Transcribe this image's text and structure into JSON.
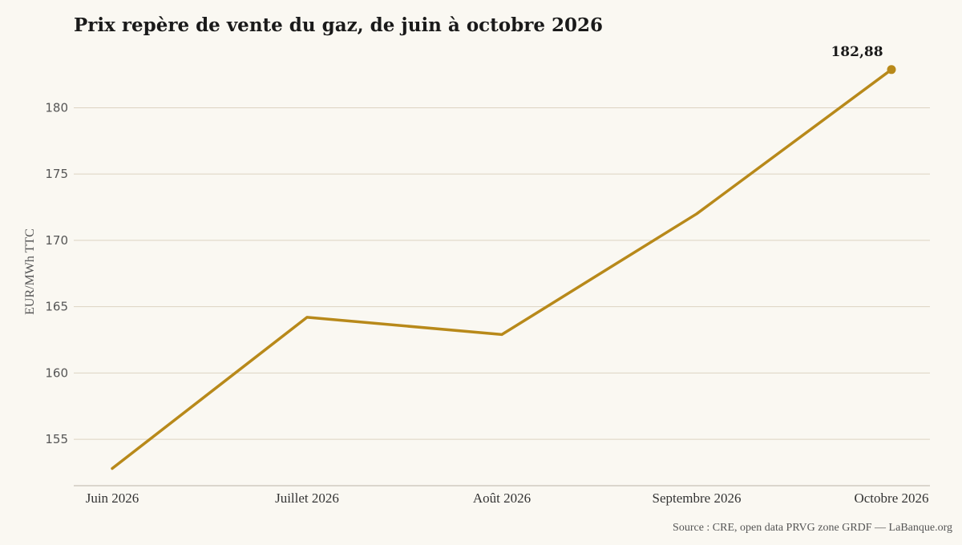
{
  "chart_data": {
    "type": "line",
    "title": "Prix repère de vente du gaz, de juin à octobre 2026",
    "xlabel": "",
    "ylabel": "EUR/MWh TTC",
    "categories": [
      "Juin 2026",
      "Juillet 2026",
      "Août 2026",
      "Septembre 2026",
      "Octobre 2026"
    ],
    "series": [
      {
        "values": [
          152.8,
          164.2,
          162.9,
          172.0,
          182.88
        ],
        "color": "#b8891a"
      }
    ],
    "yticks": [
      155,
      160,
      165,
      170,
      175,
      180
    ],
    "ytick_labels": [
      "155",
      "160",
      "165",
      "170",
      "175",
      "180"
    ],
    "ylim": [
      151.5,
      184.5
    ],
    "grid": "horizontal",
    "end_label": "182,88",
    "source": "Source : CRE, open data PRVG zone GRDF — LaBanque.org"
  }
}
